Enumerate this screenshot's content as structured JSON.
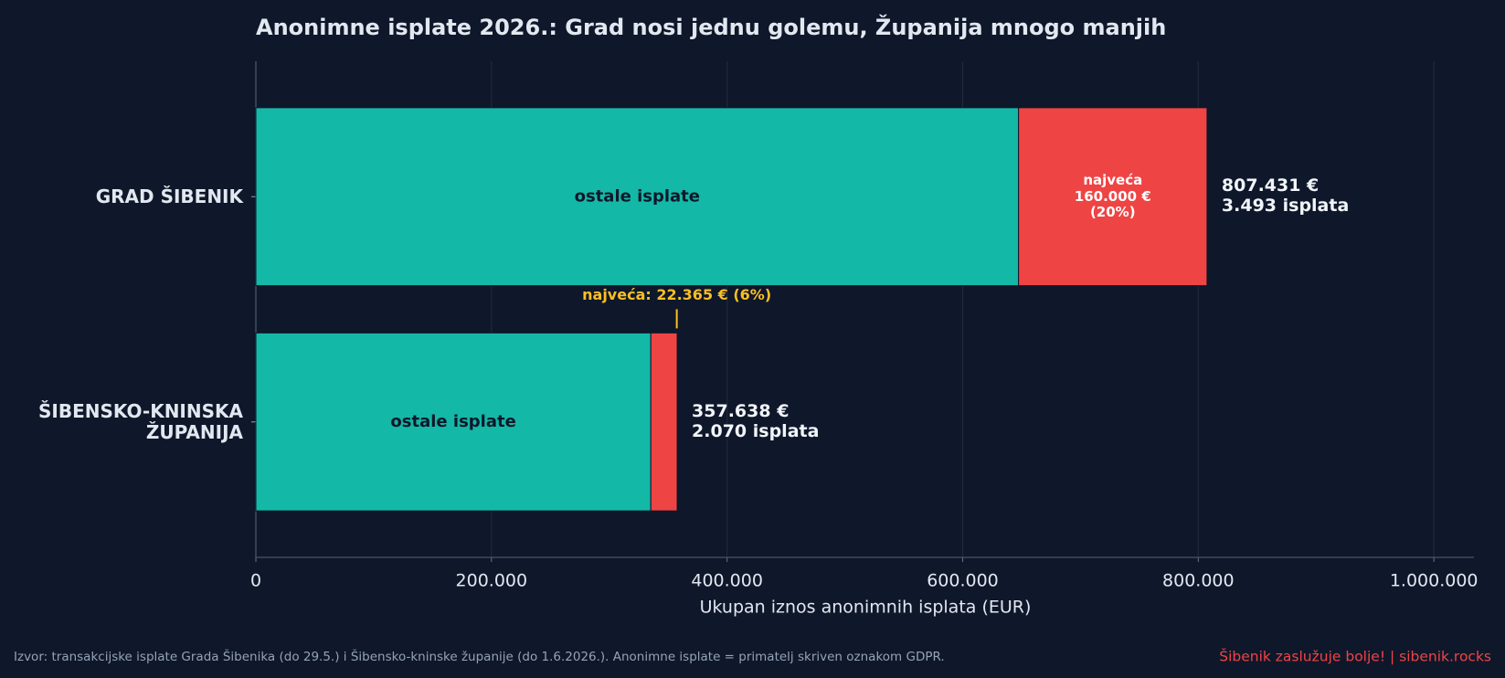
{
  "chart_data": {
    "type": "stacked-barh",
    "title": "Anonimne isplate 2026.: Grad nosi jednu golemu, Županija mnogo manjih",
    "xlabel": "Ukupan iznos anonimnih isplata (EUR)",
    "categories": [
      "GRAD ŠIBENIK",
      "ŠIBENSKO-KNINSKA\nŽUPANIJA"
    ],
    "series": [
      {
        "name": "ostale isplate",
        "color": "#14b8a6",
        "values": [
          647431,
          335273
        ]
      },
      {
        "name": "najveća",
        "color": "#ef4444",
        "values": [
          160000,
          22365
        ],
        "value_labels": [
          "najveća\n160.000 €\n(20%)",
          "najveća: 22.365 € (6%)"
        ]
      }
    ],
    "total_labels": [
      "807.431 €\n3.493 isplata",
      "357.638 €\n2.070 isplata"
    ],
    "xlim": [
      0,
      1034000
    ],
    "xticks": [
      0,
      {
        "value": 200000,
        "label": "200.000"
      },
      {
        "value": 400000,
        "label": "400.000"
      },
      {
        "value": 600000,
        "label": "600.000"
      },
      {
        "value": 800000,
        "label": "800.000"
      },
      {
        "value": 1000000,
        "label": "1.000.000"
      }
    ],
    "grid": true,
    "source": "Izvor: transakcijske isplate Grada Šibenika (do 29.5.) i Šibensko-kninske županije (do 1.6.2026.). Anonimne isplate = primatelj skriven oznakom GDPR.",
    "credit": "Šibenik zaslužuje bolje!  |  sibenik.rocks"
  }
}
